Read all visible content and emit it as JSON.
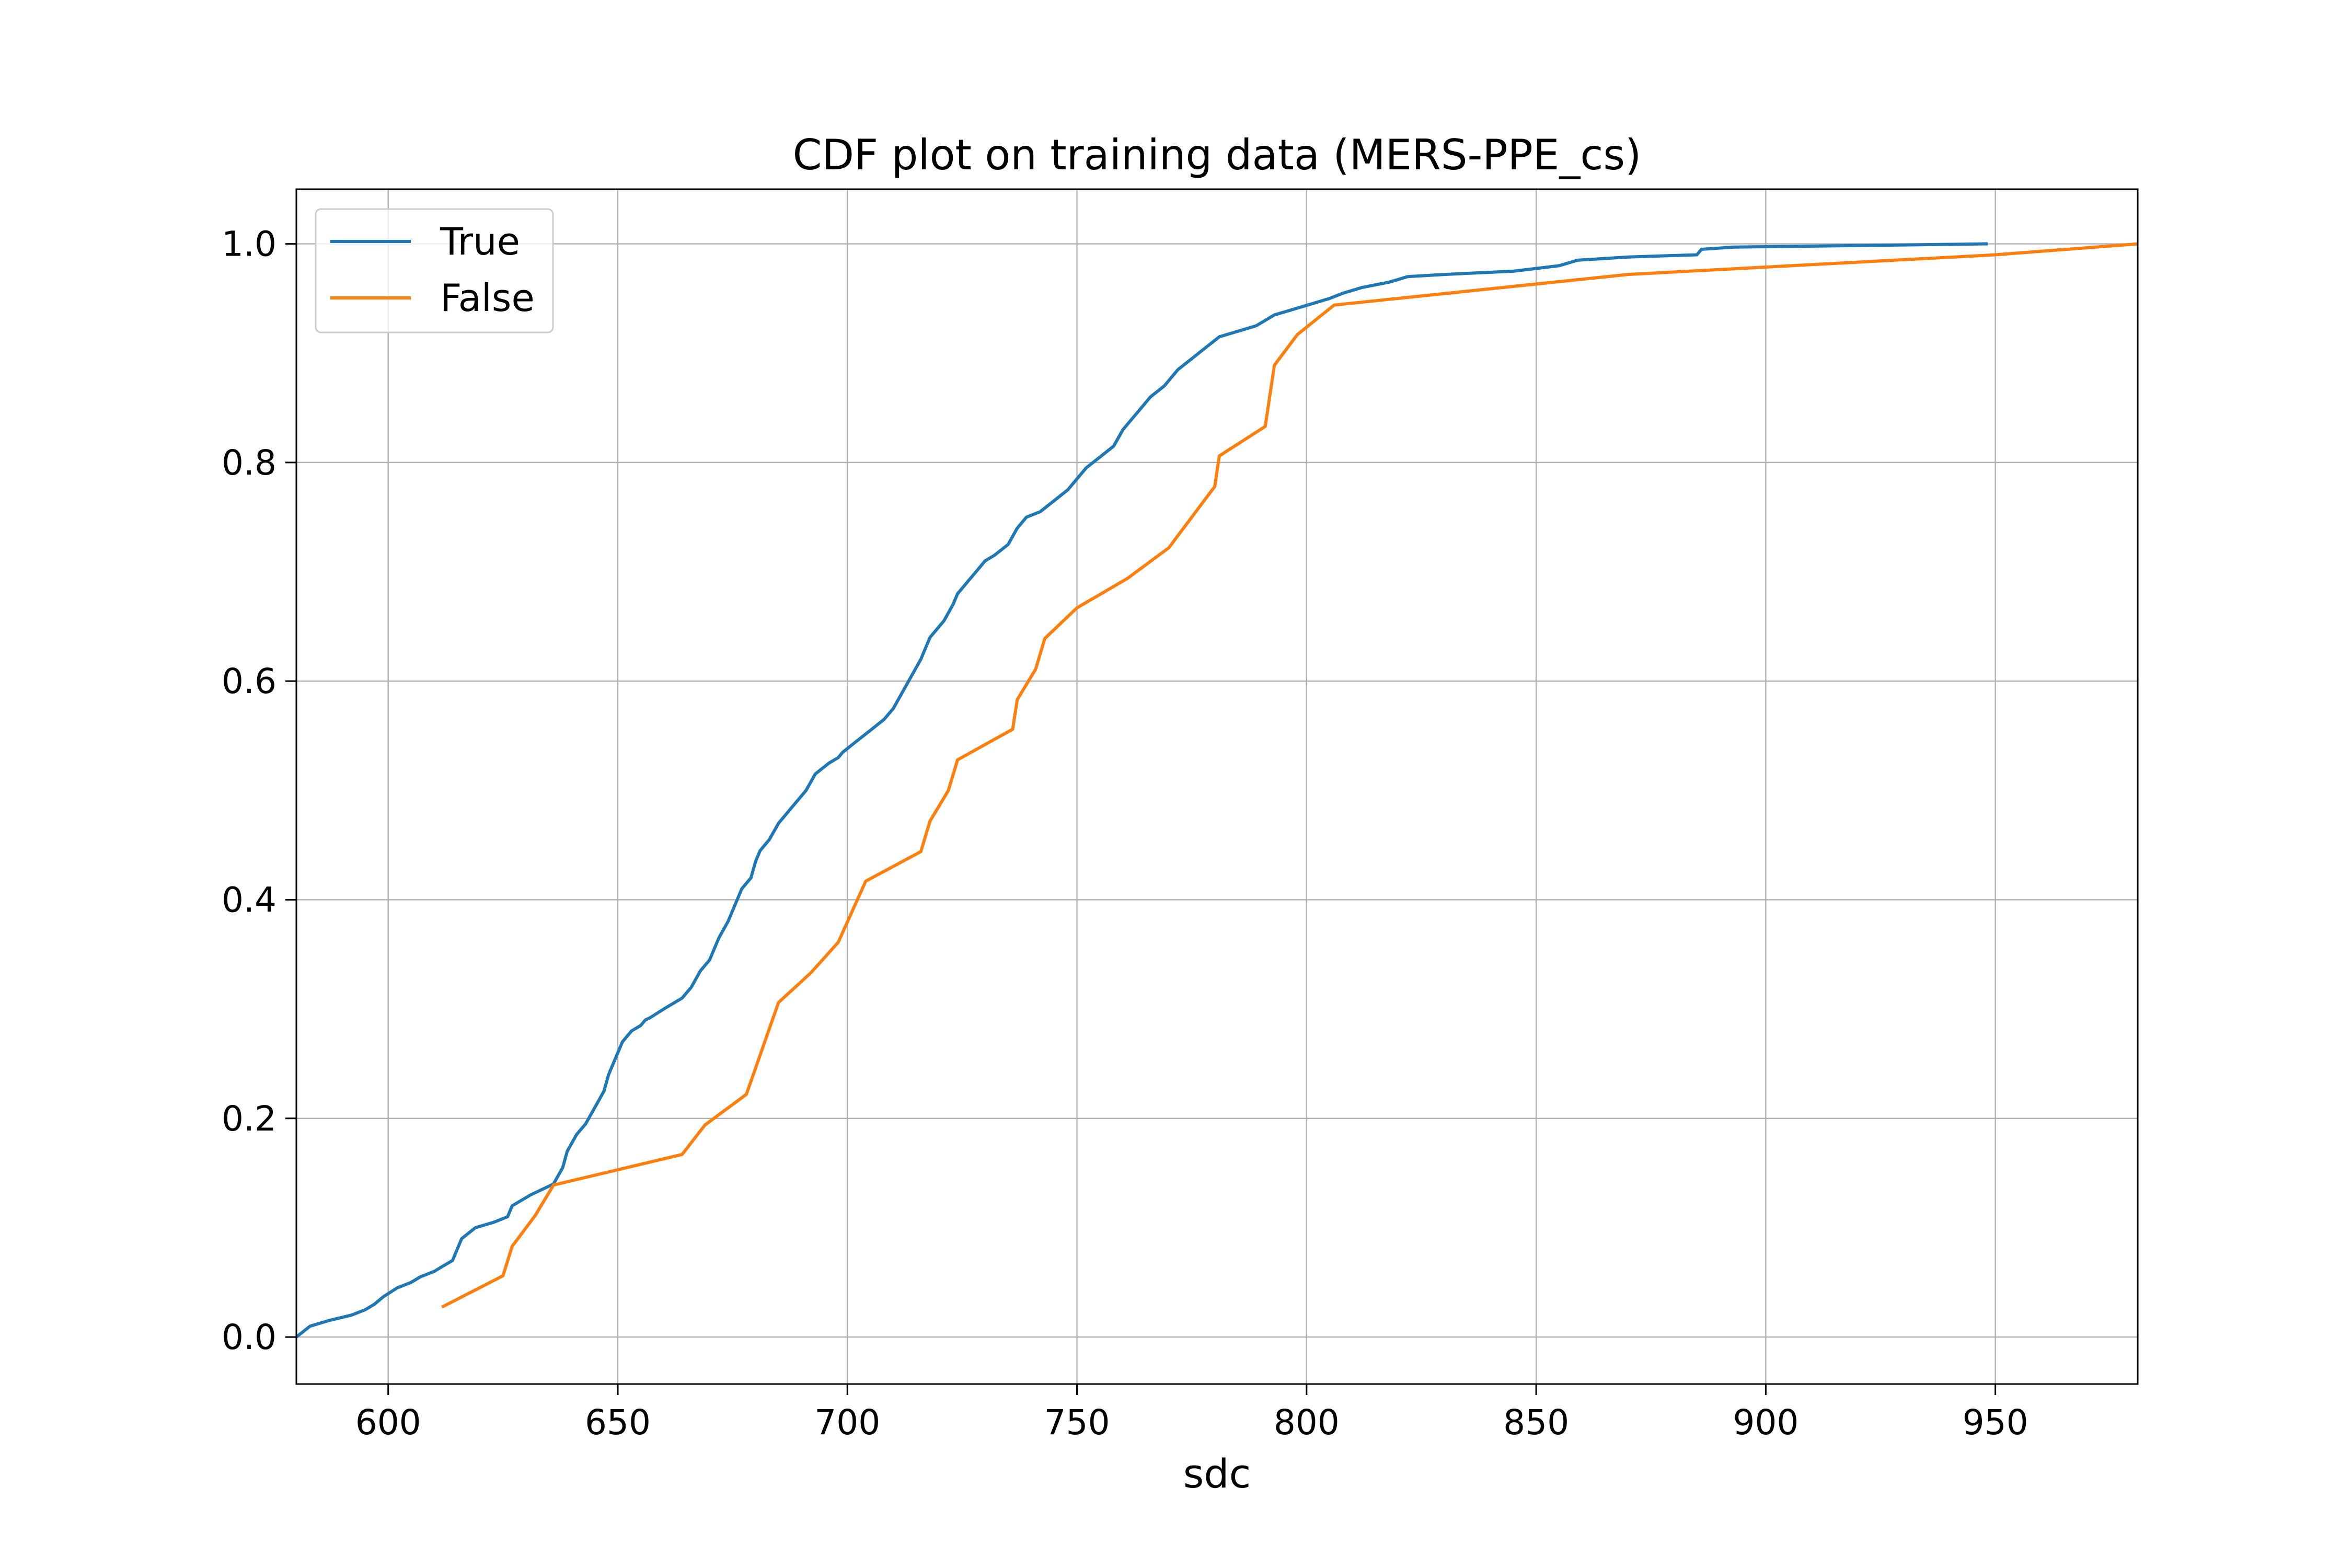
{
  "chart_data": {
    "type": "line",
    "title": "CDF plot on training data (MERS-PPE_cs)",
    "xlabel": "sdc",
    "ylabel": "",
    "xlim": [
      580,
      981
    ],
    "ylim": [
      -0.043,
      1.05
    ],
    "xticks": [
      "600",
      "650",
      "700",
      "750",
      "800",
      "850",
      "900",
      "950"
    ],
    "yticks": [
      "0.0",
      "0.2",
      "0.4",
      "0.6",
      "0.8",
      "1.0"
    ],
    "grid": true,
    "legend_position": "top-left",
    "series": [
      {
        "name": "True",
        "color": "#1f77b4",
        "x": [
          580,
          583,
          587,
          592,
          595,
          597,
          599,
          602,
          605,
          607,
          610,
          612,
          614,
          616,
          619,
          623,
          626,
          627,
          631,
          636,
          638,
          639,
          641,
          643,
          645,
          647,
          648,
          649,
          650,
          651,
          653,
          655,
          656,
          657,
          660,
          664,
          666,
          668,
          670,
          671,
          672,
          674,
          676,
          677,
          679,
          680,
          681,
          683,
          685,
          687,
          689,
          691,
          693,
          696,
          698,
          699,
          702,
          705,
          708,
          710,
          712,
          714,
          716,
          718,
          721,
          723,
          724,
          726,
          728,
          730,
          732,
          735,
          737,
          739,
          742,
          745,
          748,
          750,
          752,
          755,
          758,
          760,
          763,
          766,
          769,
          772,
          775,
          778,
          781,
          789,
          793,
          797,
          801,
          805,
          808,
          812,
          818,
          822,
          830,
          845,
          855,
          859,
          870,
          885,
          886,
          893,
          948
        ],
        "values": [
          0.0,
          0.01,
          0.015,
          0.02,
          0.025,
          0.03,
          0.037,
          0.045,
          0.05,
          0.055,
          0.06,
          0.065,
          0.07,
          0.09,
          0.1,
          0.105,
          0.11,
          0.12,
          0.13,
          0.14,
          0.155,
          0.17,
          0.185,
          0.195,
          0.21,
          0.225,
          0.24,
          0.25,
          0.26,
          0.27,
          0.28,
          0.285,
          0.29,
          0.292,
          0.3,
          0.31,
          0.32,
          0.335,
          0.345,
          0.355,
          0.365,
          0.38,
          0.4,
          0.41,
          0.42,
          0.435,
          0.445,
          0.455,
          0.47,
          0.48,
          0.49,
          0.5,
          0.515,
          0.525,
          0.53,
          0.535,
          0.545,
          0.555,
          0.565,
          0.575,
          0.59,
          0.605,
          0.62,
          0.64,
          0.655,
          0.67,
          0.68,
          0.69,
          0.7,
          0.71,
          0.715,
          0.725,
          0.74,
          0.75,
          0.755,
          0.765,
          0.775,
          0.785,
          0.795,
          0.805,
          0.815,
          0.83,
          0.845,
          0.86,
          0.87,
          0.885,
          0.895,
          0.905,
          0.915,
          0.925,
          0.935,
          0.94,
          0.945,
          0.95,
          0.955,
          0.96,
          0.965,
          0.97,
          0.972,
          0.975,
          0.98,
          0.985,
          0.988,
          0.99,
          0.995,
          0.997,
          1.0
        ]
      },
      {
        "name": "False",
        "color": "#ff7f0e",
        "x": [
          612,
          625,
          627,
          632,
          636,
          664,
          669,
          678,
          685,
          692,
          698,
          701,
          704,
          716,
          718,
          722,
          724,
          736,
          737,
          741,
          743,
          750,
          761,
          770,
          775,
          780,
          781,
          791,
          793,
          798,
          806,
          870,
          950,
          981
        ],
        "values": [
          0.028,
          0.056,
          0.083,
          0.111,
          0.139,
          0.167,
          0.194,
          0.222,
          0.306,
          0.333,
          0.361,
          0.389,
          0.417,
          0.444,
          0.472,
          0.5,
          0.528,
          0.556,
          0.583,
          0.611,
          0.639,
          0.667,
          0.694,
          0.722,
          0.75,
          0.778,
          0.806,
          0.833,
          0.889,
          0.917,
          0.944,
          0.972,
          0.99,
          1.0
        ]
      }
    ]
  }
}
